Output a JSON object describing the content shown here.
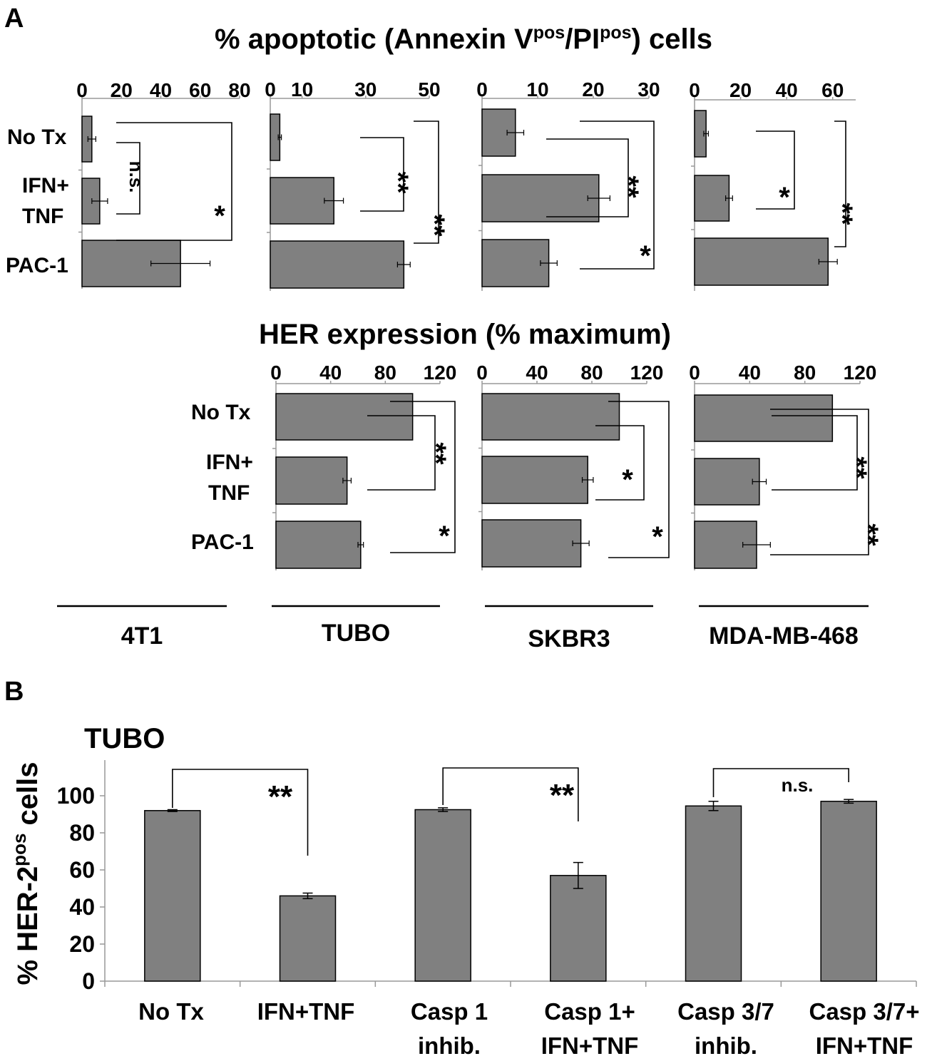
{
  "panel_a": {
    "letter": "A",
    "apoptosis_title": {
      "pre": "% apoptotic (Annexin V",
      "sup1": "pos",
      "mid": "/PI",
      "sup2": "pos",
      "post": ") cells"
    },
    "her_title": "HER expression (% maximum)",
    "row_labels": [
      "No Tx",
      "IFN+",
      "TNF",
      "PAC-1"
    ],
    "her_row_labels": [
      "No Tx",
      "IFN+",
      "TNF",
      "PAC-1"
    ],
    "cell_lines": [
      "4T1",
      "TUBO",
      "SKBR3",
      "MDA-MB-468"
    ]
  },
  "panel_b": {
    "letter": "B",
    "title": "TUBO",
    "ylabel": {
      "pre": "% HER-2",
      "sup": "pos",
      "post": " cells"
    },
    "category_lines": [
      [
        "No Tx"
      ],
      [
        "IFN+TNF"
      ],
      [
        "Casp 1",
        "inhib."
      ],
      [
        "Casp 1+",
        "IFN+TNF"
      ],
      [
        "Casp 3/7",
        "inhib."
      ],
      [
        "Casp 3/7+",
        "IFN+TNF"
      ]
    ]
  },
  "colors": {
    "bar": "#808080",
    "axis": "#999999",
    "text": "#000000"
  },
  "chart_data": [
    {
      "type": "bar",
      "orientation": "horizontal",
      "group": "% apoptotic (Annexin Vpos/PIpos) cells",
      "cell_line": "4T1",
      "categories": [
        "No Tx",
        "IFN+TNF",
        "PAC-1"
      ],
      "values": [
        5,
        9,
        50
      ],
      "errors": [
        2,
        4,
        15
      ],
      "xlim": [
        0,
        80
      ],
      "ticks": [
        0,
        20,
        40,
        60,
        80
      ],
      "significance": [
        {
          "from": 0,
          "to": 1,
          "label": "n.s."
        },
        {
          "from": 0,
          "to": 2,
          "label": "*"
        }
      ]
    },
    {
      "type": "bar",
      "orientation": "horizontal",
      "group": "% apoptotic (Annexin Vpos/PIpos) cells",
      "cell_line": "TUBO",
      "categories": [
        "No Tx",
        "IFN+TNF",
        "PAC-1"
      ],
      "values": [
        3,
        20,
        42
      ],
      "errors": [
        0.5,
        3,
        2
      ],
      "xlim": [
        0,
        50
      ],
      "ticks": [
        0,
        10,
        30,
        50
      ],
      "tick_labels": [
        "0",
        "10",
        "30",
        "50"
      ],
      "significance": [
        {
          "from": 0,
          "to": 1,
          "label": "**"
        },
        {
          "from": 0,
          "to": 2,
          "label": "**"
        }
      ]
    },
    {
      "type": "bar",
      "orientation": "horizontal",
      "group": "% apoptotic (Annexin Vpos/PIpos) cells",
      "cell_line": "SKBR3",
      "categories": [
        "No Tx",
        "IFN+TNF",
        "PAC-1"
      ],
      "values": [
        6,
        21,
        12
      ],
      "errors": [
        1.5,
        2,
        1.5
      ],
      "xlim": [
        0,
        30
      ],
      "ticks": [
        0,
        10,
        20,
        30
      ],
      "significance": [
        {
          "from": 0,
          "to": 1,
          "label": "**"
        },
        {
          "from": 0,
          "to": 2,
          "label": "*"
        }
      ]
    },
    {
      "type": "bar",
      "orientation": "horizontal",
      "group": "% apoptotic (Annexin Vpos/PIpos) cells",
      "cell_line": "MDA-MB-468",
      "categories": [
        "No Tx",
        "IFN+TNF",
        "PAC-1"
      ],
      "values": [
        5,
        15,
        58
      ],
      "errors": [
        1,
        1.5,
        4
      ],
      "xlim": [
        0,
        70
      ],
      "ticks": [
        0,
        20,
        40,
        60
      ],
      "significance": [
        {
          "from": 0,
          "to": 1,
          "label": "*"
        },
        {
          "from": 0,
          "to": 2,
          "label": "**"
        }
      ]
    },
    {
      "type": "bar",
      "orientation": "horizontal",
      "group": "HER expression (% maximum)",
      "cell_line": "TUBO",
      "categories": [
        "No Tx",
        "IFN+TNF",
        "PAC-1"
      ],
      "values": [
        100,
        52,
        62
      ],
      "errors": [
        0,
        3,
        2
      ],
      "xlim": [
        0,
        120
      ],
      "ticks": [
        0,
        40,
        80,
        120
      ],
      "significance": [
        {
          "from": 0,
          "to": 1,
          "label": "**"
        },
        {
          "from": 0,
          "to": 2,
          "label": "*"
        }
      ]
    },
    {
      "type": "bar",
      "orientation": "horizontal",
      "group": "HER expression (% maximum)",
      "cell_line": "SKBR3",
      "categories": [
        "No Tx",
        "IFN+TNF",
        "PAC-1"
      ],
      "values": [
        100,
        77,
        72
      ],
      "errors": [
        0,
        4,
        6
      ],
      "xlim": [
        0,
        120
      ],
      "ticks": [
        0,
        40,
        80,
        120
      ],
      "significance": [
        {
          "from": 0,
          "to": 1,
          "label": "*"
        },
        {
          "from": 0,
          "to": 2,
          "label": "*"
        }
      ]
    },
    {
      "type": "bar",
      "orientation": "horizontal",
      "group": "HER expression (% maximum)",
      "cell_line": "MDA-MB-468",
      "categories": [
        "No Tx",
        "IFN+TNF",
        "PAC-1"
      ],
      "values": [
        100,
        47,
        45
      ],
      "errors": [
        0,
        5,
        10
      ],
      "xlim": [
        0,
        120
      ],
      "ticks": [
        0,
        40,
        80,
        120
      ],
      "significance": [
        {
          "from": 0,
          "to": 1,
          "label": "**"
        },
        {
          "from": 0,
          "to": 2,
          "label": "**"
        }
      ]
    },
    {
      "type": "bar",
      "orientation": "vertical",
      "title": "TUBO",
      "ylabel": "% HER-2pos cells",
      "categories": [
        "No Tx",
        "IFN+TNF",
        "Casp 1 inhib.",
        "Casp 1+ IFN+TNF",
        "Casp 3/7 inhib.",
        "Casp 3/7+ IFN+TNF"
      ],
      "values": [
        92,
        46,
        92.5,
        57,
        94.5,
        97
      ],
      "errors": [
        0.5,
        1.5,
        1,
        7,
        2.5,
        1
      ],
      "ylim": [
        0,
        100
      ],
      "ticks": [
        0,
        20,
        40,
        60,
        80,
        100
      ],
      "significance": [
        {
          "from": 0,
          "to": 1,
          "label": "**"
        },
        {
          "from": 2,
          "to": 3,
          "label": "**"
        },
        {
          "from": 4,
          "to": 5,
          "label": "n.s."
        }
      ]
    }
  ]
}
